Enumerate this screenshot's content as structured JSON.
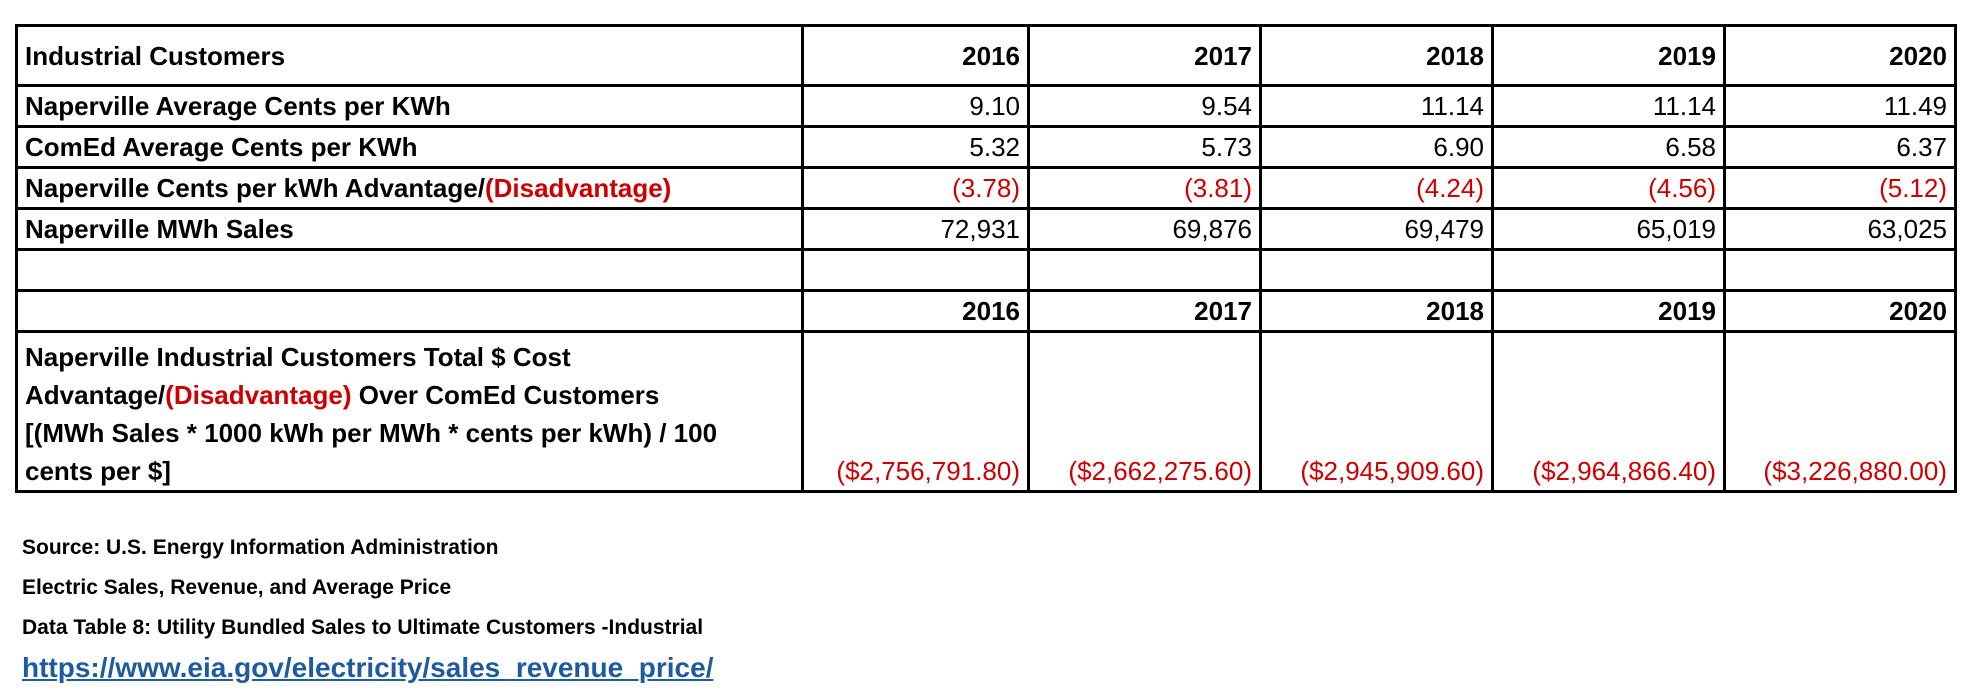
{
  "table": {
    "title": "Industrial Customers",
    "years": [
      "2016",
      "2017",
      "2018",
      "2019",
      "2020"
    ],
    "rows": [
      {
        "label": "Naperville Average  Cents per KWh",
        "values": [
          "9.10",
          "9.54",
          "11.14",
          "11.14",
          "11.49"
        ]
      },
      {
        "label": "ComEd  Average  Cents per KWh",
        "values": [
          "5.32",
          "5.73",
          "6.90",
          "6.58",
          "6.37"
        ]
      },
      {
        "label_pre": "Naperville Cents per kWh Advantage/",
        "label_red": "(Disadvantage)",
        "values": [
          "(3.78)",
          "(3.81)",
          "(4.24)",
          "(4.56)",
          "(5.12)"
        ]
      },
      {
        "label": "Naperville MWh Sales",
        "values": [
          "72,931",
          "69,876",
          "69,479",
          "65,019",
          "63,025"
        ]
      }
    ],
    "total_row": {
      "label_line1": "Naperville Industrial Customers Total $ Cost",
      "label_line2_pre": "Advantage/",
      "label_line2_red": "(Disadvantage)",
      "label_line2_post": " Over ComEd Customers",
      "label_line3": "[(MWh Sales * 1000 kWh per MWh * cents per kWh) / 100",
      "label_line4": "cents per $]",
      "values": [
        "($2,756,791.80)",
        "($2,662,275.60)",
        "($2,945,909.60)",
        "($2,964,866.40)",
        "($3,226,880.00)"
      ]
    }
  },
  "footer": {
    "source_lines": [
      "Source: U.S. Energy Information Administration",
      "Electric Sales, Revenue, and Average Price",
      "Data Table 8: Utility Bundled Sales to Ultimate Customers -Industrial"
    ],
    "link": "https://www.eia.gov/electricity/sales_revenue_price/"
  },
  "colors": {
    "negative": "#cc0000",
    "link": "#1e5a9e",
    "border": "#000000"
  }
}
